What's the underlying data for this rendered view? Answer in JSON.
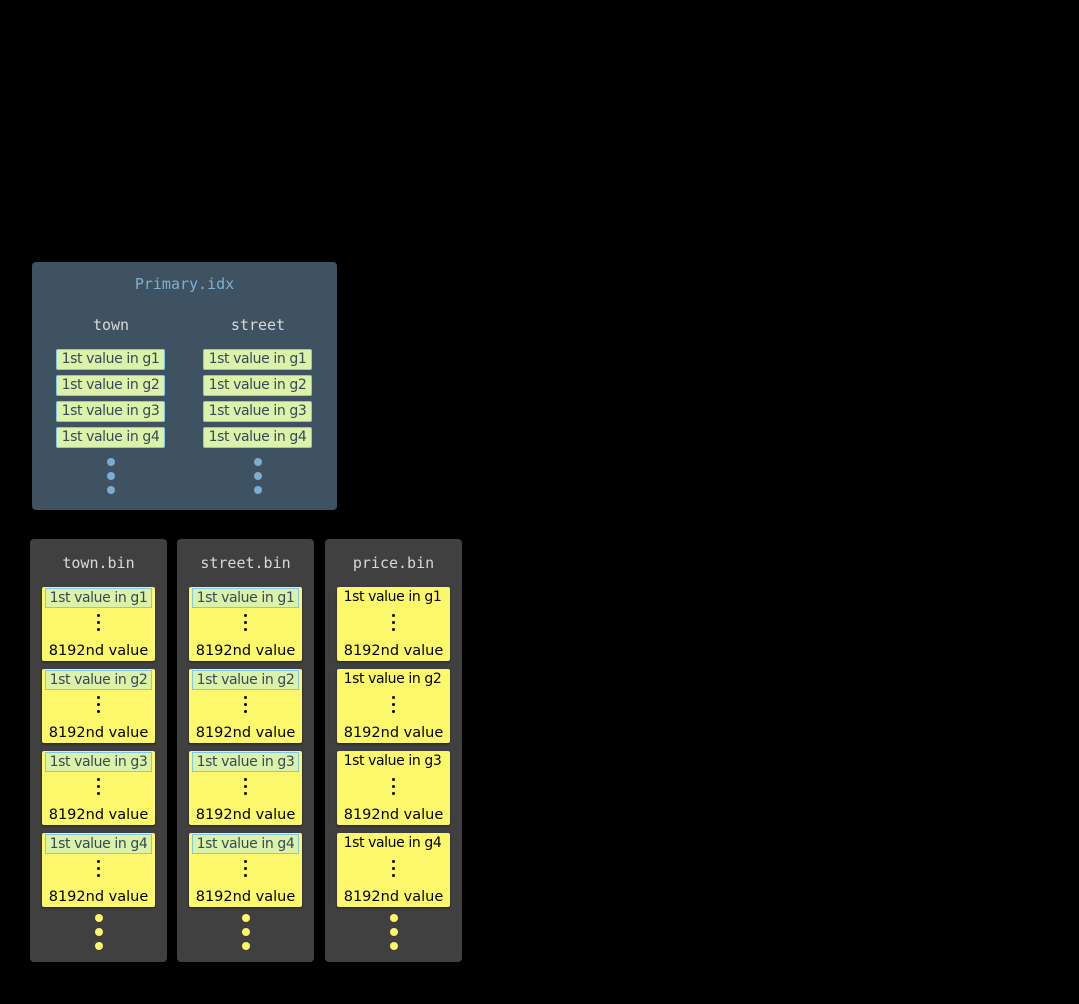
{
  "primary_index": {
    "title": "Primary.idx",
    "columns": [
      {
        "name": "town",
        "marks": [
          "1st value in g1",
          "1st value in g2",
          "1st value in g3",
          "1st value in g4"
        ]
      },
      {
        "name": "street",
        "marks": [
          "1st value in g1",
          "1st value in g2",
          "1st value in g3",
          "1st value in g4"
        ]
      }
    ]
  },
  "bins": [
    {
      "title": "town.bin",
      "highlighted": true,
      "granules": [
        {
          "first": "1st value in g1",
          "last": "8192nd value"
        },
        {
          "first": "1st value in g2",
          "last": "8192nd value"
        },
        {
          "first": "1st value in g3",
          "last": "8192nd value"
        },
        {
          "first": "1st value in g4",
          "last": "8192nd value"
        }
      ]
    },
    {
      "title": "street.bin",
      "highlighted": true,
      "granules": [
        {
          "first": "1st value in g1",
          "last": "8192nd value"
        },
        {
          "first": "1st value in g2",
          "last": "8192nd value"
        },
        {
          "first": "1st value in g3",
          "last": "8192nd value"
        },
        {
          "first": "1st value in g4",
          "last": "8192nd value"
        }
      ]
    },
    {
      "title": "price.bin",
      "highlighted": false,
      "granules": [
        {
          "first": "1st value in g1",
          "last": "8192nd value"
        },
        {
          "first": "1st value in g2",
          "last": "8192nd value"
        },
        {
          "first": "1st value in g3",
          "last": "8192nd value"
        },
        {
          "first": "1st value in g4",
          "last": "8192nd value"
        }
      ]
    }
  ],
  "colors": {
    "index_panel": "#3e5262",
    "bin_panel": "#404040",
    "granule": "#fdf76c",
    "mark": "#dcf2a8",
    "mark_border": "#7ec8ea"
  }
}
